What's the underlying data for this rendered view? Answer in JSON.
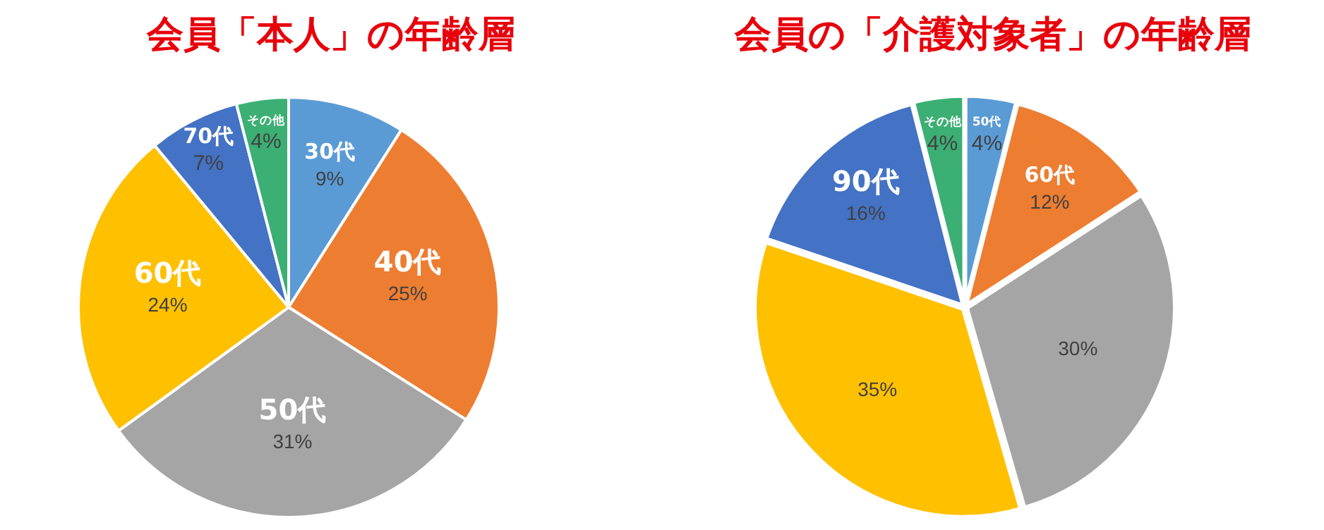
{
  "chart_data": [
    {
      "type": "pie",
      "title": "会員「本人」の年齢層",
      "categories": [
        "30代",
        "40代",
        "50代",
        "60代",
        "70代",
        "その他"
      ],
      "values": [
        9,
        25,
        31,
        24,
        7,
        4
      ],
      "value_labels": [
        "9%",
        "25%",
        "31%",
        "24%",
        "7%",
        "4%"
      ],
      "colors": [
        "#5b9bd5",
        "#ed7d31",
        "#a5a5a5",
        "#ffc000",
        "#4472c4",
        "#3caf74"
      ],
      "legend": false
    },
    {
      "type": "pie",
      "title": "会員の「介護対象者」の年齢層",
      "categories": [
        "50代",
        "60代",
        null,
        null,
        "90代",
        "その他"
      ],
      "values": [
        4,
        12,
        30,
        35,
        16,
        4
      ],
      "value_labels": [
        "4%",
        "12%",
        "30%",
        "35%",
        "16%",
        "4%"
      ],
      "colors": [
        "#5b9bd5",
        "#ed7d31",
        "#a5a5a5",
        "#ffc000",
        "#4472c4",
        "#3caf74"
      ],
      "legend": false
    }
  ]
}
